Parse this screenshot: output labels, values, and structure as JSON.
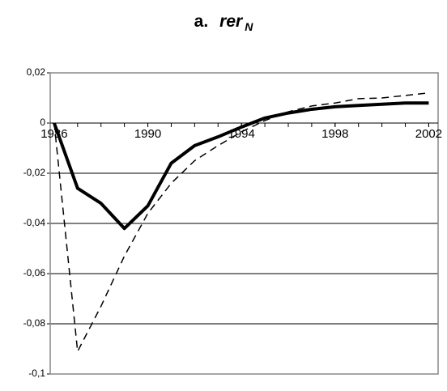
{
  "chart_data": {
    "type": "line",
    "title": {
      "prefix": "a.",
      "symbol": "rer",
      "subscript": "N"
    },
    "x": [
      1986,
      1987,
      1988,
      1989,
      1990,
      1991,
      1992,
      1993,
      1994,
      1995,
      1996,
      1997,
      1998,
      1999,
      2000,
      2001,
      2002
    ],
    "series": [
      {
        "color": "#000000",
        "dash": "none",
        "width": 4,
        "values": [
          0,
          -0.026,
          -0.032,
          -0.042,
          -0.033,
          -0.016,
          -0.009,
          -0.0055,
          -0.0016,
          0.002,
          0.004,
          0.0055,
          0.0065,
          0.007,
          0.0075,
          0.008,
          0.008
        ]
      },
      {
        "color": "#000000",
        "dash": "9 6",
        "width": 1.5,
        "values": [
          0,
          -0.091,
          -0.073,
          -0.053,
          -0.036,
          -0.024,
          -0.015,
          -0.009,
          -0.0035,
          0.001,
          0.0045,
          0.0068,
          0.008,
          0.0097,
          0.01,
          0.011,
          0.012
        ]
      }
    ],
    "xlim": [
      1985.83,
      2002.4
    ],
    "xticks": [
      1986,
      1990,
      1994,
      1998,
      2002
    ],
    "ylim": [
      -0.1,
      0.02
    ],
    "yticks": [
      {
        "value": 0.02,
        "label": "0,02"
      },
      {
        "value": 0,
        "label": "0"
      },
      {
        "value": -0.02,
        "label": "-0,02"
      },
      {
        "value": -0.04,
        "label": "-0,04"
      },
      {
        "value": -0.06,
        "label": "-0,06"
      },
      {
        "value": -0.08,
        "label": "-0,08"
      },
      {
        "value": -0.1,
        "label": "-0,1"
      }
    ],
    "grid": true
  }
}
